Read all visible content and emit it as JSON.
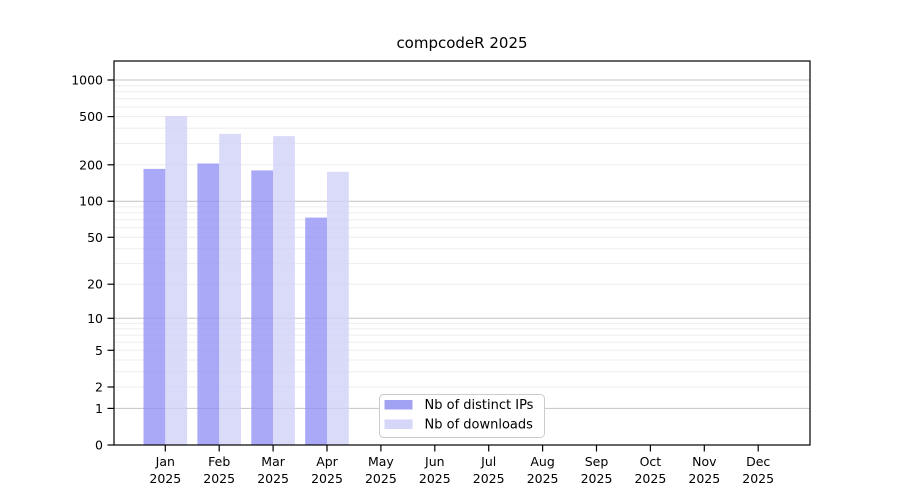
{
  "title": "compcodeR 2025",
  "chart_data": {
    "type": "bar",
    "title": "compcodeR 2025",
    "yscale": "log1p",
    "categories": [
      "Jan 2025",
      "Feb 2025",
      "Mar 2025",
      "Apr 2025",
      "May 2025",
      "Jun 2025",
      "Jul 2025",
      "Aug 2025",
      "Sep 2025",
      "Oct 2025",
      "Nov 2025",
      "Dec 2025"
    ],
    "month_labels": [
      "Jan",
      "Feb",
      "Mar",
      "Apr",
      "May",
      "Jun",
      "Jul",
      "Aug",
      "Sep",
      "Oct",
      "Nov",
      "Dec"
    ],
    "year_label": "2025",
    "series": [
      {
        "name": "Nb of distinct IPs",
        "bar_color": "#9494f6",
        "bar_opacity": 0.8,
        "legend_color": "#a2a2f3",
        "values": [
          185,
          205,
          180,
          73,
          0,
          0,
          0,
          0,
          0,
          0,
          0,
          0
        ]
      },
      {
        "name": "Nb of downloads",
        "bar_color": "#d1d1f7",
        "bar_opacity": 0.8,
        "legend_color": "#d6d6f8",
        "values": [
          505,
          360,
          345,
          175,
          0,
          0,
          0,
          0,
          0,
          0,
          0,
          0
        ]
      }
    ],
    "yticks": [
      0,
      1,
      2,
      5,
      10,
      20,
      50,
      100,
      200,
      500,
      1000
    ],
    "ylim": [
      0,
      1550
    ],
    "grid": {
      "major": [
        1,
        10,
        100,
        1000
      ],
      "minor": [
        2,
        3,
        4,
        5,
        6,
        7,
        8,
        9,
        20,
        30,
        40,
        50,
        60,
        70,
        80,
        90,
        200,
        300,
        400,
        500,
        600,
        700,
        800,
        900
      ]
    },
    "legend": {
      "position": "bottom-center",
      "entries": [
        "Nb of distinct IPs",
        "Nb of downloads"
      ]
    }
  },
  "colors": {
    "background": "#ffffff",
    "axis": "#000000",
    "text": "#000000",
    "grid_major": "#c4c4c4",
    "grid_minor": "#ededed",
    "legend_border": "#cccccc",
    "legend_background": "#ffffff"
  }
}
